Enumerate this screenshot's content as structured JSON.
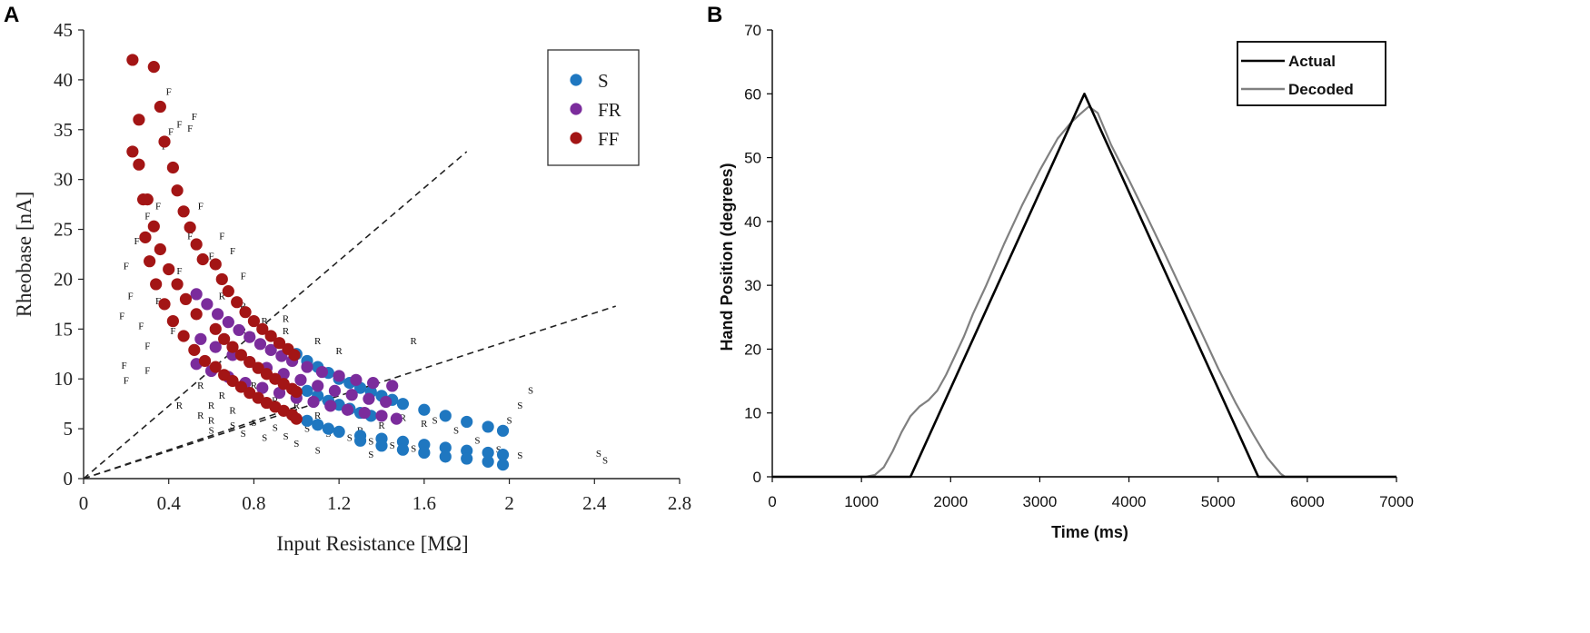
{
  "chart_data": [
    {
      "panel": "A",
      "type": "scatter",
      "title": "",
      "xlabel": "Input Resistance [MΩ]",
      "ylabel": "Rheobase [nA]",
      "xlim": [
        0,
        2.8
      ],
      "ylim": [
        0,
        45
      ],
      "xticks": [
        0,
        0.4,
        0.8,
        1.2,
        1.6,
        2,
        2.4,
        2.8
      ],
      "xtick_labels": [
        "0",
        "0.4",
        "0.8",
        "1.2",
        "1.6",
        "2",
        "2.4",
        "2.8"
      ],
      "yticks": [
        0,
        5,
        10,
        15,
        20,
        25,
        30,
        35,
        40,
        45
      ],
      "ytick_labels": [
        "0",
        "5",
        "10",
        "15",
        "20",
        "25",
        "30",
        "35",
        "40",
        "45"
      ],
      "legend": {
        "placement": "top-right",
        "entries": [
          "S",
          "FR",
          "FF"
        ]
      },
      "colors": {
        "S": "#1f77c0",
        "FR": "#7b2c9c",
        "FF": "#a31515"
      },
      "series": [
        {
          "name": "S",
          "points": [
            [
              1.0,
              12.5
            ],
            [
              1.05,
              11.8
            ],
            [
              1.1,
              11.2
            ],
            [
              1.15,
              10.6
            ],
            [
              1.2,
              10.0
            ],
            [
              1.25,
              9.6
            ],
            [
              1.3,
              9.1
            ],
            [
              1.35,
              8.7
            ],
            [
              1.4,
              8.3
            ],
            [
              1.45,
              7.9
            ],
            [
              1.5,
              7.5
            ],
            [
              1.6,
              6.9
            ],
            [
              1.7,
              6.3
            ],
            [
              1.8,
              5.7
            ],
            [
              1.9,
              5.2
            ],
            [
              1.97,
              4.8
            ],
            [
              1.05,
              8.8
            ],
            [
              1.1,
              8.3
            ],
            [
              1.15,
              7.8
            ],
            [
              1.2,
              7.4
            ],
            [
              1.25,
              7.0
            ],
            [
              1.3,
              6.6
            ],
            [
              1.35,
              6.3
            ],
            [
              1.05,
              5.8
            ],
            [
              1.1,
              5.4
            ],
            [
              1.15,
              5.0
            ],
            [
              1.2,
              4.7
            ],
            [
              1.3,
              4.3
            ],
            [
              1.4,
              4.0
            ],
            [
              1.5,
              3.7
            ],
            [
              1.6,
              3.4
            ],
            [
              1.7,
              3.1
            ],
            [
              1.8,
              2.8
            ],
            [
              1.9,
              2.6
            ],
            [
              1.97,
              2.4
            ],
            [
              1.3,
              3.8
            ],
            [
              1.4,
              3.3
            ],
            [
              1.5,
              2.9
            ],
            [
              1.6,
              2.6
            ],
            [
              1.7,
              2.2
            ],
            [
              1.8,
              2.0
            ],
            [
              1.9,
              1.7
            ],
            [
              1.97,
              1.4
            ]
          ]
        },
        {
          "name": "FR",
          "points": [
            [
              0.53,
              18.5
            ],
            [
              0.58,
              17.5
            ],
            [
              0.63,
              16.5
            ],
            [
              0.68,
              15.7
            ],
            [
              0.73,
              14.9
            ],
            [
              0.78,
              14.2
            ],
            [
              0.83,
              13.5
            ],
            [
              0.88,
              12.9
            ],
            [
              0.93,
              12.3
            ],
            [
              0.98,
              11.8
            ],
            [
              1.05,
              11.2
            ],
            [
              1.12,
              10.7
            ],
            [
              1.2,
              10.3
            ],
            [
              1.28,
              9.9
            ],
            [
              1.36,
              9.6
            ],
            [
              1.45,
              9.3
            ],
            [
              0.55,
              14.0
            ],
            [
              0.62,
              13.2
            ],
            [
              0.7,
              12.4
            ],
            [
              0.78,
              11.7
            ],
            [
              0.86,
              11.1
            ],
            [
              0.94,
              10.5
            ],
            [
              1.02,
              9.9
            ],
            [
              1.1,
              9.3
            ],
            [
              1.18,
              8.8
            ],
            [
              1.26,
              8.4
            ],
            [
              1.34,
              8.0
            ],
            [
              1.42,
              7.7
            ],
            [
              0.53,
              11.5
            ],
            [
              0.6,
              10.8
            ],
            [
              0.68,
              10.2
            ],
            [
              0.76,
              9.6
            ],
            [
              0.84,
              9.1
            ],
            [
              0.92,
              8.6
            ],
            [
              1.0,
              8.1
            ],
            [
              1.08,
              7.7
            ],
            [
              1.16,
              7.3
            ],
            [
              1.24,
              6.9
            ],
            [
              1.32,
              6.6
            ],
            [
              1.4,
              6.3
            ],
            [
              1.47,
              6.0
            ]
          ]
        },
        {
          "name": "FF",
          "points": [
            [
              0.23,
              42.0
            ],
            [
              0.33,
              41.3
            ],
            [
              0.36,
              37.3
            ],
            [
              0.38,
              33.8
            ],
            [
              0.42,
              31.2
            ],
            [
              0.44,
              28.9
            ],
            [
              0.47,
              26.8
            ],
            [
              0.5,
              25.2
            ],
            [
              0.53,
              23.5
            ],
            [
              0.56,
              22.0
            ],
            [
              0.23,
              32.8
            ],
            [
              0.26,
              31.5
            ],
            [
              0.3,
              28.0
            ],
            [
              0.33,
              25.3
            ],
            [
              0.36,
              23.0
            ],
            [
              0.4,
              21.0
            ],
            [
              0.44,
              19.5
            ],
            [
              0.48,
              18.0
            ],
            [
              0.53,
              16.5
            ],
            [
              0.26,
              36.0
            ],
            [
              0.28,
              28.0
            ],
            [
              0.29,
              24.2
            ],
            [
              0.31,
              21.8
            ],
            [
              0.34,
              19.5
            ],
            [
              0.38,
              17.5
            ],
            [
              0.42,
              15.8
            ],
            [
              0.47,
              14.3
            ],
            [
              0.52,
              12.9
            ],
            [
              0.57,
              11.8
            ],
            [
              0.62,
              21.5
            ],
            [
              0.65,
              20.0
            ],
            [
              0.68,
              18.8
            ],
            [
              0.72,
              17.7
            ],
            [
              0.76,
              16.7
            ],
            [
              0.8,
              15.8
            ],
            [
              0.84,
              15.0
            ],
            [
              0.88,
              14.3
            ],
            [
              0.92,
              13.6
            ],
            [
              0.96,
              13.0
            ],
            [
              0.99,
              12.4
            ],
            [
              0.62,
              15.0
            ],
            [
              0.66,
              14.0
            ],
            [
              0.7,
              13.2
            ],
            [
              0.74,
              12.4
            ],
            [
              0.78,
              11.7
            ],
            [
              0.82,
              11.1
            ],
            [
              0.86,
              10.5
            ],
            [
              0.9,
              10.0
            ],
            [
              0.94,
              9.5
            ],
            [
              0.98,
              9.0
            ],
            [
              1.0,
              8.7
            ],
            [
              0.62,
              11.2
            ],
            [
              0.66,
              10.4
            ],
            [
              0.7,
              9.8
            ],
            [
              0.74,
              9.2
            ],
            [
              0.78,
              8.6
            ],
            [
              0.82,
              8.1
            ],
            [
              0.86,
              7.6
            ],
            [
              0.9,
              7.2
            ],
            [
              0.94,
              6.8
            ],
            [
              0.98,
              6.4
            ],
            [
              1.0,
              6.0
            ]
          ]
        }
      ],
      "letter_markers": [
        {
          "label": "F",
          "points": [
            [
              0.2,
              21
            ],
            [
              0.25,
              23.5
            ],
            [
              0.3,
              26
            ],
            [
              0.35,
              27
            ],
            [
              0.38,
              33
            ],
            [
              0.41,
              34.5
            ],
            [
              0.45,
              35.2
            ],
            [
              0.5,
              34.8
            ],
            [
              0.52,
              36
            ],
            [
              0.4,
              38.5
            ],
            [
              0.22,
              18
            ],
            [
              0.18,
              16
            ],
            [
              0.19,
              11
            ],
            [
              0.27,
              15
            ],
            [
              0.3,
              13
            ],
            [
              0.45,
              20.5
            ],
            [
              0.5,
              24
            ],
            [
              0.55,
              27
            ],
            [
              0.6,
              22
            ],
            [
              0.65,
              24
            ],
            [
              0.7,
              22.5
            ],
            [
              0.75,
              20
            ],
            [
              0.2,
              9.5
            ],
            [
              0.3,
              10.5
            ],
            [
              0.35,
              17.5
            ],
            [
              0.42,
              14.5
            ]
          ]
        },
        {
          "label": "R",
          "points": [
            [
              0.65,
              18
            ],
            [
              0.75,
              17
            ],
            [
              0.85,
              15.5
            ],
            [
              0.95,
              14.5
            ],
            [
              1.1,
              13.5
            ],
            [
              1.2,
              12.5
            ],
            [
              0.55,
              9
            ],
            [
              0.6,
              7
            ],
            [
              0.65,
              8
            ],
            [
              0.7,
              6.5
            ],
            [
              0.8,
              9
            ],
            [
              0.9,
              7.5
            ],
            [
              1.0,
              7
            ],
            [
              1.1,
              6
            ],
            [
              0.45,
              7
            ],
            [
              0.55,
              6
            ],
            [
              0.6,
              5.5
            ],
            [
              1.3,
              4.5
            ],
            [
              1.4,
              5
            ],
            [
              1.5,
              5.8
            ],
            [
              1.6,
              5.2
            ],
            [
              0.75,
              14.5
            ],
            [
              0.95,
              15.7
            ],
            [
              1.55,
              13.5
            ]
          ]
        },
        {
          "label": "S",
          "points": [
            [
              0.7,
              5
            ],
            [
              0.8,
              5.3
            ],
            [
              0.9,
              4.8
            ],
            [
              0.75,
              4.2
            ],
            [
              0.85,
              3.8
            ],
            [
              0.95,
              3.9
            ],
            [
              1.05,
              4.7
            ],
            [
              1.15,
              4.2
            ],
            [
              1.25,
              3.8
            ],
            [
              1.35,
              3.4
            ],
            [
              1.45,
              3.0
            ],
            [
              1.55,
              2.7
            ],
            [
              1.65,
              5.5
            ],
            [
              1.75,
              4.5
            ],
            [
              1.85,
              3.5
            ],
            [
              1.95,
              2.6
            ],
            [
              2.05,
              2.0
            ],
            [
              2.1,
              8.5
            ],
            [
              2.05,
              7.0
            ],
            [
              2.0,
              5.5
            ],
            [
              2.45,
              1.5
            ],
            [
              2.42,
              2.2
            ],
            [
              1.0,
              3.2
            ],
            [
              0.6,
              4.5
            ],
            [
              1.35,
              2.1
            ],
            [
              1.1,
              2.5
            ]
          ]
        }
      ],
      "reference_lines": [
        {
          "style": "dashed",
          "from": [
            0,
            0
          ],
          "to": [
            1.8,
            32.8
          ]
        },
        {
          "style": "dashed",
          "from": [
            0,
            0
          ],
          "to": [
            2.5,
            17.3
          ]
        },
        {
          "style": "dashed",
          "from": [
            0,
            0
          ],
          "to": [
            1.0,
            7.2
          ]
        }
      ]
    },
    {
      "panel": "B",
      "type": "line",
      "title": "",
      "xlabel": "Time (ms)",
      "ylabel": "Hand Position (degrees)",
      "xlim": [
        0,
        7000
      ],
      "ylim": [
        0,
        70
      ],
      "xticks": [
        0,
        1000,
        2000,
        3000,
        4000,
        5000,
        6000,
        7000
      ],
      "xtick_labels": [
        "0",
        "1000",
        "2000",
        "3000",
        "4000",
        "5000",
        "6000",
        "7000"
      ],
      "yticks": [
        0,
        10,
        20,
        30,
        40,
        50,
        60,
        70
      ],
      "ytick_labels": [
        "0",
        "10",
        "20",
        "30",
        "40",
        "50",
        "60",
        "70"
      ],
      "legend": {
        "placement": "top-right",
        "entries": [
          "Actual",
          "Decoded"
        ]
      },
      "colors": {
        "Actual": "#000000",
        "Decoded": "#808080"
      },
      "series": [
        {
          "name": "Actual",
          "x": [
            0,
            1550,
            3500,
            5450,
            7000
          ],
          "y": [
            0,
            0,
            60,
            0,
            0
          ]
        },
        {
          "name": "Decoded",
          "x": [
            0,
            1050,
            1150,
            1250,
            1350,
            1450,
            1550,
            1650,
            1750,
            1850,
            1950,
            2050,
            2150,
            2250,
            2400,
            2600,
            2800,
            3000,
            3200,
            3350,
            3450,
            3550,
            3650,
            3800,
            4000,
            4200,
            4400,
            4600,
            4800,
            5000,
            5200,
            5400,
            5550,
            5700,
            5750,
            7000
          ],
          "y": [
            0,
            0,
            0.3,
            1.5,
            4,
            7,
            9.5,
            11,
            12,
            13.5,
            16,
            19,
            22,
            25.5,
            30,
            36.5,
            42.5,
            48,
            53,
            55.5,
            56.8,
            58,
            57,
            52,
            46.5,
            40.8,
            35,
            29,
            23,
            17,
            11.5,
            6.5,
            3,
            0.5,
            0,
            0
          ]
        }
      ]
    }
  ],
  "panels": {
    "a": "A",
    "b": "B"
  }
}
